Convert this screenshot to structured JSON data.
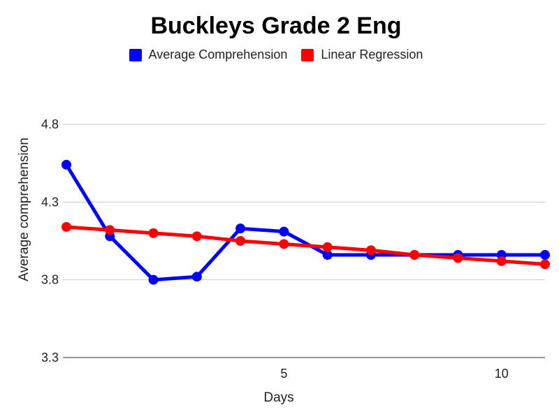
{
  "chart_data": {
    "type": "line",
    "title": "Buckleys Grade 2 Eng",
    "xlabel": "Days",
    "ylabel": "Average comprehension",
    "xlim": [
      0,
      11
    ],
    "ylim": [
      3.3,
      4.9
    ],
    "yticks": [
      3.3,
      3.8,
      4.3,
      4.8
    ],
    "xticks": [
      5,
      10
    ],
    "grid": true,
    "legend_position": "top",
    "series": [
      {
        "name": "Average Comprehension",
        "color": "#0000ff",
        "x": [
          0,
          1,
          2,
          3,
          4,
          5,
          6,
          7,
          8,
          9,
          10,
          11
        ],
        "y": [
          4.54,
          4.08,
          3.8,
          3.82,
          4.13,
          4.11,
          3.96,
          3.96,
          3.96,
          3.96,
          3.96,
          3.96
        ]
      },
      {
        "name": "Linear Regression",
        "color": "#ff0000",
        "x": [
          0,
          1,
          2,
          3,
          4,
          5,
          6,
          7,
          8,
          9,
          10,
          11
        ],
        "y": [
          4.14,
          4.12,
          4.1,
          4.08,
          4.05,
          4.03,
          4.01,
          3.99,
          3.96,
          3.94,
          3.92,
          3.9
        ]
      }
    ]
  }
}
